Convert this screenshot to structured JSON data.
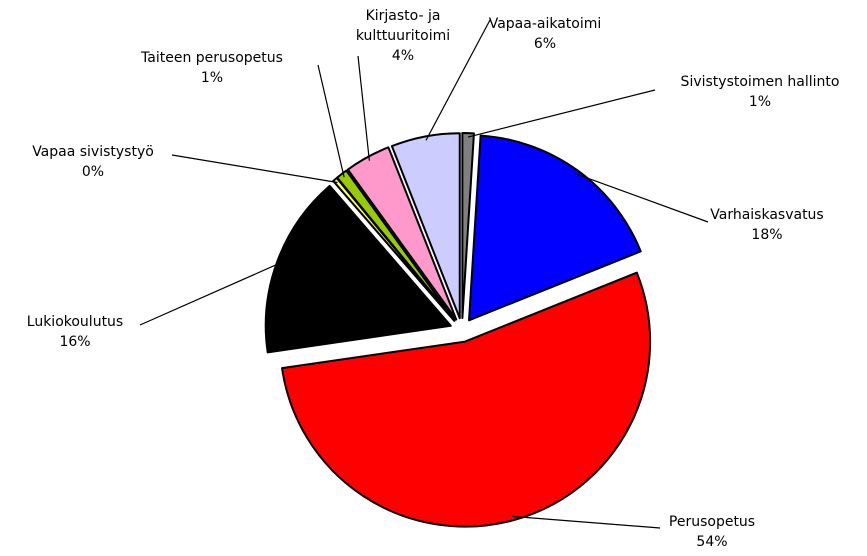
{
  "chart_data": {
    "type": "pie",
    "categories": [
      "Sivistystoimen hallinto",
      "Varhaiskasvatus",
      "Perusopetus",
      "Lukiokoulutus",
      "Vapaa sivistystyö",
      "Taiteen perusopetus",
      "Kirjasto- ja kulttuuritoimi",
      "Vapaa-aikatoimi"
    ],
    "values": [
      1,
      18,
      54,
      16,
      0.4,
      1,
      4,
      6
    ],
    "value_labels": [
      "1%",
      "18%",
      "54%",
      "16%",
      "0%",
      "1%",
      "4%",
      "6%"
    ],
    "colors": [
      "#808080",
      "#0000ff",
      "#ff0000",
      "#000000",
      "#ffff66",
      "#99cc00",
      "#ff99cc",
      "#ccccff"
    ],
    "start_angle": 90,
    "direction": "clockwise"
  }
}
